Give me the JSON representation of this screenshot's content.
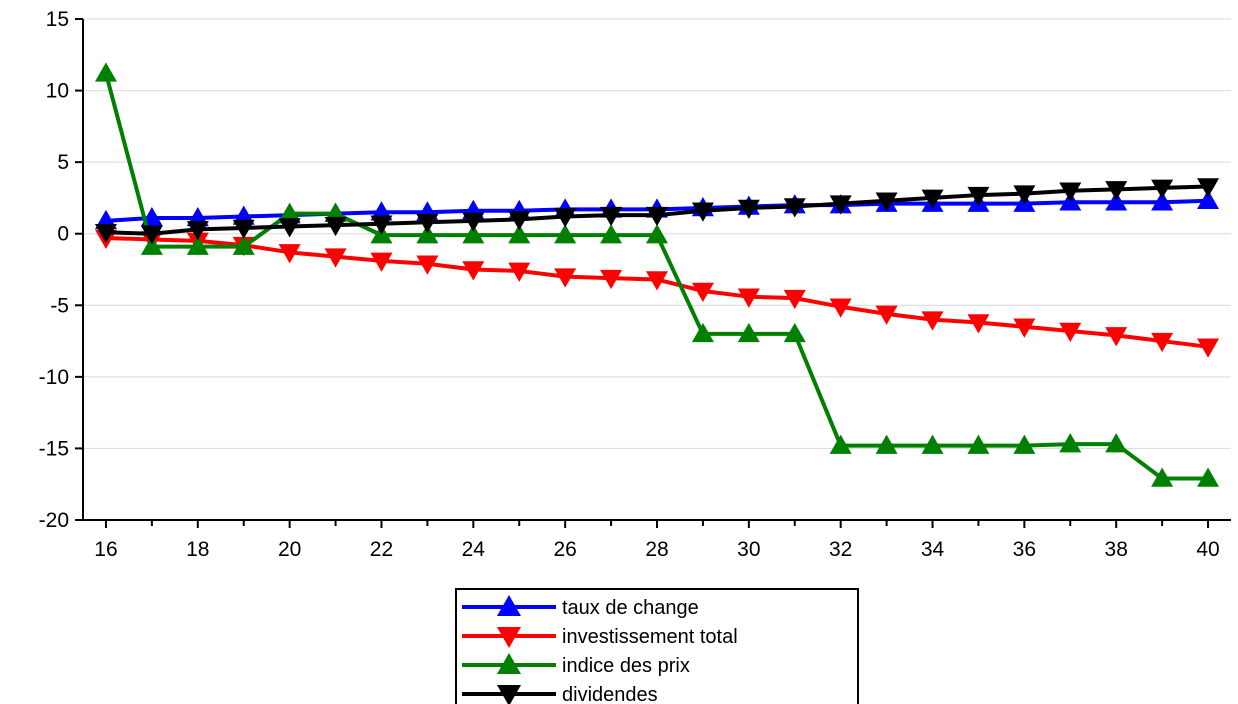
{
  "chart_data": {
    "type": "line",
    "title": "",
    "xlabel": "",
    "ylabel": "",
    "x": [
      16,
      17,
      18,
      19,
      20,
      21,
      22,
      23,
      24,
      25,
      26,
      27,
      28,
      29,
      30,
      31,
      32,
      33,
      34,
      35,
      36,
      37,
      38,
      39,
      40
    ],
    "xlim": [
      15.5,
      40.5
    ],
    "ylim": [
      -20,
      15
    ],
    "x_ticks": [
      16,
      18,
      20,
      22,
      24,
      26,
      28,
      30,
      32,
      34,
      36,
      38,
      40
    ],
    "x_tick_labels": [
      "16",
      "18",
      "20",
      "22",
      "24",
      "26",
      "28",
      "30",
      "32",
      "34",
      "36",
      "38",
      "40"
    ],
    "y_ticks": [
      15,
      10,
      5,
      0,
      -5,
      -10,
      -15,
      -20
    ],
    "y_tick_labels": [
      "15",
      "10",
      "5",
      "0",
      "-5",
      "-10",
      "-15",
      "-20"
    ],
    "grid": true,
    "legend_position": "bottom-center",
    "series": [
      {
        "name": "taux de change",
        "color": "#0000ff",
        "marker": "triangle-up",
        "values": [
          0.9,
          1.1,
          1.1,
          1.2,
          1.3,
          1.4,
          1.5,
          1.5,
          1.6,
          1.6,
          1.7,
          1.7,
          1.7,
          1.8,
          1.9,
          2.0,
          2.0,
          2.1,
          2.1,
          2.1,
          2.1,
          2.2,
          2.2,
          2.2,
          2.3
        ]
      },
      {
        "name": "investissement total",
        "color": "#ff0000",
        "marker": "triangle-down",
        "values": [
          -0.3,
          -0.4,
          -0.5,
          -0.8,
          -1.3,
          -1.6,
          -1.9,
          -2.1,
          -2.5,
          -2.6,
          -3.0,
          -3.1,
          -3.2,
          -4.0,
          -4.4,
          -4.5,
          -5.1,
          -5.6,
          -6.0,
          -6.2,
          -6.5,
          -6.8,
          -7.1,
          -7.5,
          -7.9
        ]
      },
      {
        "name": "indice des prix",
        "color": "#008000",
        "marker": "triangle-up",
        "values": [
          11.2,
          -0.9,
          -0.9,
          -0.9,
          1.4,
          1.4,
          -0.1,
          -0.1,
          -0.1,
          -0.1,
          -0.1,
          -0.1,
          -0.1,
          -7.0,
          -7.0,
          -7.0,
          -14.8,
          -14.8,
          -14.8,
          -14.8,
          -14.8,
          -14.7,
          -14.7,
          -17.1,
          -17.1
        ]
      },
      {
        "name": "dividendes",
        "color": "#000000",
        "marker": "triangle-down",
        "values": [
          0.1,
          0.0,
          0.3,
          0.4,
          0.5,
          0.6,
          0.7,
          0.8,
          0.9,
          1.0,
          1.2,
          1.3,
          1.3,
          1.6,
          1.8,
          1.9,
          2.1,
          2.3,
          2.5,
          2.7,
          2.8,
          3.0,
          3.1,
          3.2,
          3.3
        ]
      }
    ]
  }
}
